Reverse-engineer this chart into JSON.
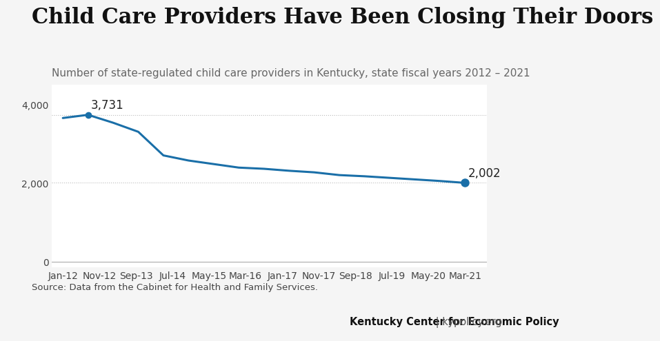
{
  "title": "Child Care Providers Have Been Closing Their Doors",
  "subtitle": "Number of state-regulated child care providers in Kentucky, state fiscal years 2012 – 2021",
  "source": "Source: Data from the Cabinet for Health and Family Services.",
  "footer_bold": "Kentucky Center for Economic Policy",
  "footer_regular": " | kypolicy.org",
  "x_labels": [
    "Jan-12",
    "Nov-12",
    "Sep-13",
    "Jul-14",
    "May-15",
    "Mar-16",
    "Jan-17",
    "Nov-17",
    "Sep-18",
    "Jul-19",
    "May-20",
    "Mar-21"
  ],
  "data_points": [
    [
      0,
      3650
    ],
    [
      1,
      3731
    ],
    [
      2,
      3530
    ],
    [
      3,
      3300
    ],
    [
      4,
      2700
    ],
    [
      5,
      2570
    ],
    [
      6,
      2480
    ],
    [
      7,
      2390
    ],
    [
      8,
      2360
    ],
    [
      9,
      2310
    ],
    [
      10,
      2270
    ],
    [
      11,
      2200
    ],
    [
      12,
      2170
    ],
    [
      13,
      2130
    ],
    [
      14,
      2090
    ],
    [
      15,
      2050
    ],
    [
      16,
      2002
    ]
  ],
  "line_color": "#1a6fa8",
  "dot_color": "#1a6fa8",
  "annotation_3731_label": "3,731",
  "annotation_2002_label": "2,002",
  "yticks": [
    0,
    2000,
    4000
  ],
  "ylim": [
    -150,
    4500
  ],
  "hline_y1": 3731,
  "hline_y2": 2002,
  "background_color": "#f5f5f5",
  "plot_bg_color": "#ffffff",
  "footer_bg_color": "#e8e8e8",
  "title_fontsize": 22,
  "subtitle_fontsize": 11,
  "axis_fontsize": 10,
  "annotation_fontsize": 12,
  "source_fontsize": 9.5,
  "footer_fontsize": 10.5
}
